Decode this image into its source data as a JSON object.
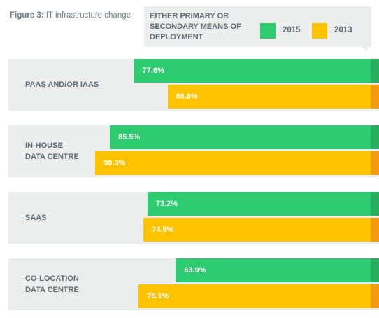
{
  "figure": {
    "label": "Figure 3:",
    "title": "IT infrastructure change"
  },
  "legend": {
    "heading": "EITHER PRIMARY OR SECONDARY MEANS OF DEPLOYMENT",
    "items": [
      {
        "name": "2015",
        "color": "#2ecc71"
      },
      {
        "name": "2013",
        "color": "#ffc300"
      }
    ]
  },
  "chart_data": {
    "type": "bar",
    "orientation": "horizontal",
    "title": "IT infrastructure change",
    "categories": [
      "PAAS AND/OR IAAS",
      "IN-HOUSE\nDATA CENTRE",
      "SAAS",
      "CO-LOCATION\nDATA CENTRE"
    ],
    "series": [
      {
        "name": "2015",
        "color": "#2ecc71",
        "values": [
          77.6,
          85.5,
          73.2,
          63.9
        ],
        "labels": [
          "77.6%",
          "85.5%",
          "73.2%",
          "63.9%"
        ]
      },
      {
        "name": "2013",
        "color": "#ffc300",
        "values": [
          66.6,
          90.3,
          74.5,
          76.1
        ],
        "labels": [
          "66.6%",
          "90.3%",
          "74.5%",
          "76.1%"
        ]
      }
    ],
    "unit": "%",
    "legend_position": "top-right"
  }
}
